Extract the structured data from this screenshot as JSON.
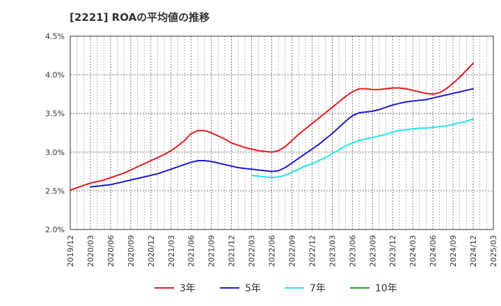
{
  "chart_data": {
    "type": "line",
    "title": "[2221]  ROAの平均値の推移",
    "xlabel": "",
    "ylabel": "",
    "ylim": [
      2.0,
      4.5
    ],
    "yticks": [
      2.0,
      2.5,
      3.0,
      3.5,
      4.0,
      4.5
    ],
    "ytick_labels": [
      "2.0%",
      "2.5%",
      "3.0%",
      "3.5%",
      "4.0%",
      "4.5%"
    ],
    "xticks": [
      "2019/12",
      "2020/03",
      "2020/06",
      "2020/09",
      "2020/12",
      "2021/03",
      "2021/06",
      "2021/09",
      "2021/12",
      "2022/03",
      "2022/06",
      "2022/09",
      "2022/12",
      "2023/03",
      "2023/06",
      "2023/09",
      "2023/12",
      "2024/03",
      "2024/06",
      "2024/09",
      "2024/12",
      "2025/03"
    ],
    "grid": true,
    "legend_position": "bottom",
    "series": [
      {
        "name": "3年",
        "color": "#e31a1c",
        "x": [
          "2019/12",
          "2020/01",
          "2020/02",
          "2020/03",
          "2020/04",
          "2020/05",
          "2020/06",
          "2020/07",
          "2020/08",
          "2020/09",
          "2020/10",
          "2020/11",
          "2020/12",
          "2021/01",
          "2021/02",
          "2021/03",
          "2021/04",
          "2021/05",
          "2021/06",
          "2021/07",
          "2021/08",
          "2021/09",
          "2021/10",
          "2021/11",
          "2021/12",
          "2022/01",
          "2022/02",
          "2022/03",
          "2022/04",
          "2022/05",
          "2022/06",
          "2022/07",
          "2022/08",
          "2022/09",
          "2022/10",
          "2022/11",
          "2022/12",
          "2023/01",
          "2023/02",
          "2023/03",
          "2023/04",
          "2023/05",
          "2023/06",
          "2023/07",
          "2023/08",
          "2023/09",
          "2023/10",
          "2023/11",
          "2023/12",
          "2024/01",
          "2024/02",
          "2024/03",
          "2024/04",
          "2024/05",
          "2024/06",
          "2024/07",
          "2024/08",
          "2024/09",
          "2024/10",
          "2024/11",
          "2024/12"
        ],
        "values": [
          2.51,
          2.54,
          2.57,
          2.6,
          2.62,
          2.64,
          2.67,
          2.7,
          2.73,
          2.77,
          2.81,
          2.85,
          2.89,
          2.93,
          2.97,
          3.02,
          3.08,
          3.15,
          3.24,
          3.28,
          3.28,
          3.25,
          3.21,
          3.17,
          3.12,
          3.09,
          3.06,
          3.04,
          3.02,
          3.01,
          3.0,
          3.02,
          3.07,
          3.15,
          3.23,
          3.3,
          3.37,
          3.44,
          3.51,
          3.58,
          3.65,
          3.72,
          3.78,
          3.82,
          3.82,
          3.81,
          3.81,
          3.82,
          3.83,
          3.83,
          3.82,
          3.8,
          3.78,
          3.76,
          3.75,
          3.77,
          3.82,
          3.89,
          3.97,
          4.06,
          4.15
        ]
      },
      {
        "name": "5年",
        "color": "#1a1acc",
        "x": [
          "2020/03",
          "2020/04",
          "2020/05",
          "2020/06",
          "2020/07",
          "2020/08",
          "2020/09",
          "2020/10",
          "2020/11",
          "2020/12",
          "2021/01",
          "2021/02",
          "2021/03",
          "2021/04",
          "2021/05",
          "2021/06",
          "2021/07",
          "2021/08",
          "2021/09",
          "2021/10",
          "2021/11",
          "2021/12",
          "2022/01",
          "2022/02",
          "2022/03",
          "2022/04",
          "2022/05",
          "2022/06",
          "2022/07",
          "2022/08",
          "2022/09",
          "2022/10",
          "2022/11",
          "2022/12",
          "2023/01",
          "2023/02",
          "2023/03",
          "2023/04",
          "2023/05",
          "2023/06",
          "2023/07",
          "2023/08",
          "2023/09",
          "2023/10",
          "2023/11",
          "2023/12",
          "2024/01",
          "2024/02",
          "2024/03",
          "2024/04",
          "2024/05",
          "2024/06",
          "2024/07",
          "2024/08",
          "2024/09",
          "2024/10",
          "2024/11",
          "2024/12"
        ],
        "values": [
          2.55,
          2.56,
          2.57,
          2.58,
          2.6,
          2.62,
          2.64,
          2.66,
          2.68,
          2.7,
          2.72,
          2.75,
          2.78,
          2.81,
          2.84,
          2.87,
          2.89,
          2.89,
          2.88,
          2.86,
          2.84,
          2.82,
          2.8,
          2.79,
          2.78,
          2.77,
          2.76,
          2.75,
          2.76,
          2.8,
          2.86,
          2.92,
          2.98,
          3.04,
          3.1,
          3.17,
          3.24,
          3.32,
          3.4,
          3.47,
          3.51,
          3.52,
          3.53,
          3.55,
          3.58,
          3.61,
          3.63,
          3.65,
          3.66,
          3.67,
          3.68,
          3.7,
          3.72,
          3.74,
          3.76,
          3.78,
          3.8,
          3.82
        ]
      },
      {
        "name": "7年",
        "color": "#22e5f0",
        "x": [
          "2022/03",
          "2022/04",
          "2022/05",
          "2022/06",
          "2022/07",
          "2022/08",
          "2022/09",
          "2022/10",
          "2022/11",
          "2022/12",
          "2023/01",
          "2023/02",
          "2023/03",
          "2023/04",
          "2023/05",
          "2023/06",
          "2023/07",
          "2023/08",
          "2023/09",
          "2023/10",
          "2023/11",
          "2023/12",
          "2024/01",
          "2024/02",
          "2024/03",
          "2024/04",
          "2024/05",
          "2024/06",
          "2024/07",
          "2024/08",
          "2024/09",
          "2024/10",
          "2024/11",
          "2024/12"
        ],
        "values": [
          2.7,
          2.69,
          2.68,
          2.67,
          2.68,
          2.7,
          2.74,
          2.78,
          2.82,
          2.85,
          2.89,
          2.93,
          2.98,
          3.03,
          3.08,
          3.12,
          3.15,
          3.17,
          3.19,
          3.21,
          3.23,
          3.26,
          3.28,
          3.29,
          3.3,
          3.31,
          3.31,
          3.32,
          3.33,
          3.34,
          3.36,
          3.38,
          3.4,
          3.43
        ]
      },
      {
        "name": "10年",
        "color": "#2ca02c",
        "x": [],
        "values": []
      }
    ]
  }
}
